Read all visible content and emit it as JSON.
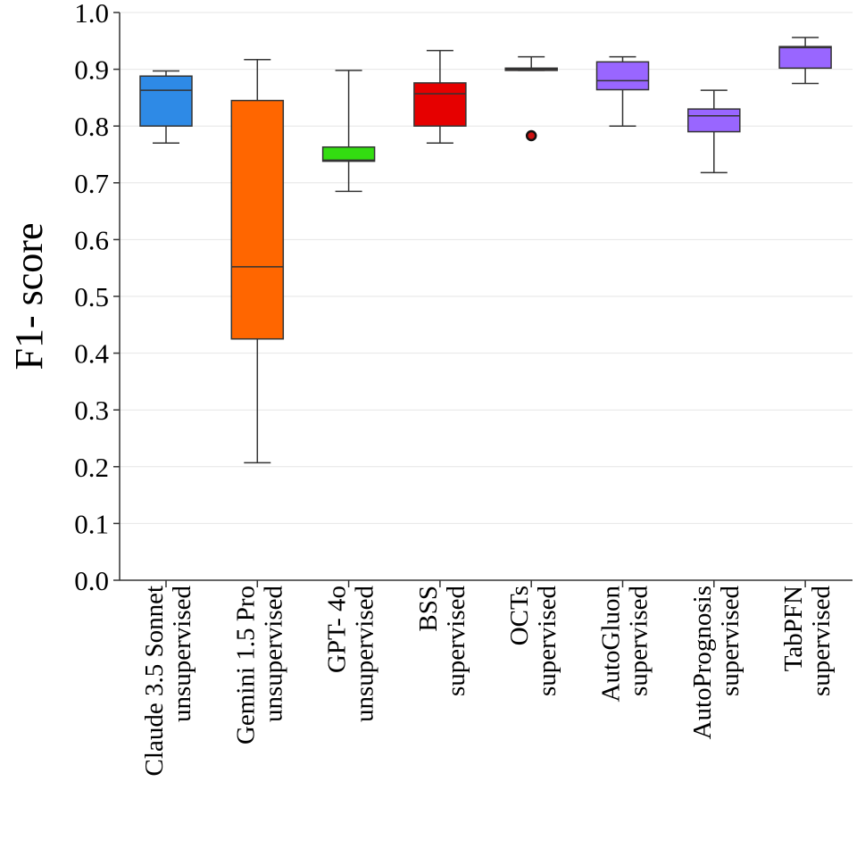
{
  "chart_data": {
    "type": "box",
    "ylabel": "F1- score",
    "ylim": [
      0.0,
      1.0
    ],
    "yticks": [
      "0.0",
      "0.1",
      "0.2",
      "0.3",
      "0.4",
      "0.5",
      "0.6",
      "0.7",
      "0.8",
      "0.9",
      "1.0"
    ],
    "grid": true,
    "categories": [
      {
        "line1": "Claude 3.5 Sonnet",
        "line2": "unsupervised",
        "color": "#2e8ae6",
        "min": 0.77,
        "q1": 0.8,
        "median": 0.863,
        "q3": 0.888,
        "max": 0.897,
        "outliers": []
      },
      {
        "line1": "Gemini 1.5 Pro",
        "line2": "unsupervised",
        "color": "#ff6600",
        "min": 0.207,
        "q1": 0.425,
        "median": 0.552,
        "q3": 0.845,
        "max": 0.917,
        "outliers": []
      },
      {
        "line1": "GPT- 4o",
        "line2": "unsupervised",
        "color": "#33dd11",
        "min": 0.685,
        "q1": 0.738,
        "median": 0.74,
        "q3": 0.763,
        "max": 0.898,
        "outliers": []
      },
      {
        "line1": "BSS",
        "line2": "supervised",
        "color": "#e60000",
        "min": 0.77,
        "q1": 0.8,
        "median": 0.857,
        "q3": 0.876,
        "max": 0.933,
        "outliers": []
      },
      {
        "line1": "OCTs",
        "line2": "supervised",
        "color": "#cc1111",
        "min": 0.898,
        "q1": 0.898,
        "median": 0.9,
        "q3": 0.902,
        "max": 0.922,
        "outliers": [
          0.783
        ]
      },
      {
        "line1": "AutoGluon",
        "line2": "supervised",
        "color": "#9966ff",
        "min": 0.8,
        "q1": 0.864,
        "median": 0.88,
        "q3": 0.913,
        "max": 0.922,
        "outliers": []
      },
      {
        "line1": "AutoPrognosis",
        "line2": "supervised",
        "color": "#9966ff",
        "min": 0.718,
        "q1": 0.79,
        "median": 0.818,
        "q3": 0.83,
        "max": 0.863,
        "outliers": []
      },
      {
        "line1": "TabPFN",
        "line2": "supervised",
        "color": "#9966ff",
        "min": 0.875,
        "q1": 0.902,
        "median": 0.938,
        "q3": 0.94,
        "max": 0.956,
        "outliers": []
      }
    ]
  }
}
